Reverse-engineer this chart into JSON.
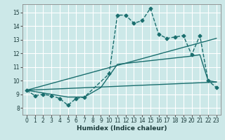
{
  "xlabel": "Humidex (Indice chaleur)",
  "background_color": "#cce8e8",
  "grid_color": "#ffffff",
  "line_color": "#1a6e6e",
  "xlim": [
    -0.5,
    23.5
  ],
  "ylim": [
    7.5,
    15.6
  ],
  "xticks": [
    0,
    1,
    2,
    3,
    4,
    5,
    6,
    7,
    8,
    9,
    10,
    11,
    12,
    13,
    14,
    15,
    16,
    17,
    18,
    19,
    20,
    21,
    22,
    23
  ],
  "yticks": [
    8,
    9,
    10,
    11,
    12,
    13,
    14,
    15
  ],
  "series": [
    {
      "x": [
        0,
        1,
        2,
        3,
        4,
        5,
        6,
        7,
        10,
        11,
        12,
        13,
        14,
        15,
        16,
        17,
        18,
        19,
        20,
        21,
        22,
        23
      ],
      "y": [
        9.3,
        8.9,
        9.0,
        8.9,
        8.7,
        8.2,
        8.7,
        8.8,
        10.5,
        14.8,
        14.8,
        14.2,
        14.4,
        15.3,
        13.4,
        13.1,
        13.2,
        13.3,
        11.9,
        13.3,
        10.0,
        9.5
      ],
      "marker": "D",
      "markersize": 2.5,
      "linewidth": 1.0,
      "linestyle": "--"
    },
    {
      "x": [
        0,
        5,
        7,
        9,
        11,
        20,
        21,
        22,
        23
      ],
      "y": [
        9.3,
        8.8,
        8.8,
        9.5,
        11.2,
        11.8,
        11.9,
        10.0,
        9.9
      ],
      "marker": null,
      "linewidth": 1.0,
      "linestyle": "-"
    },
    {
      "x": [
        0,
        23
      ],
      "y": [
        9.3,
        13.1
      ],
      "marker": null,
      "linewidth": 1.0,
      "linestyle": "-"
    },
    {
      "x": [
        0,
        23
      ],
      "y": [
        9.3,
        9.9
      ],
      "marker": null,
      "linewidth": 1.0,
      "linestyle": "-"
    }
  ]
}
